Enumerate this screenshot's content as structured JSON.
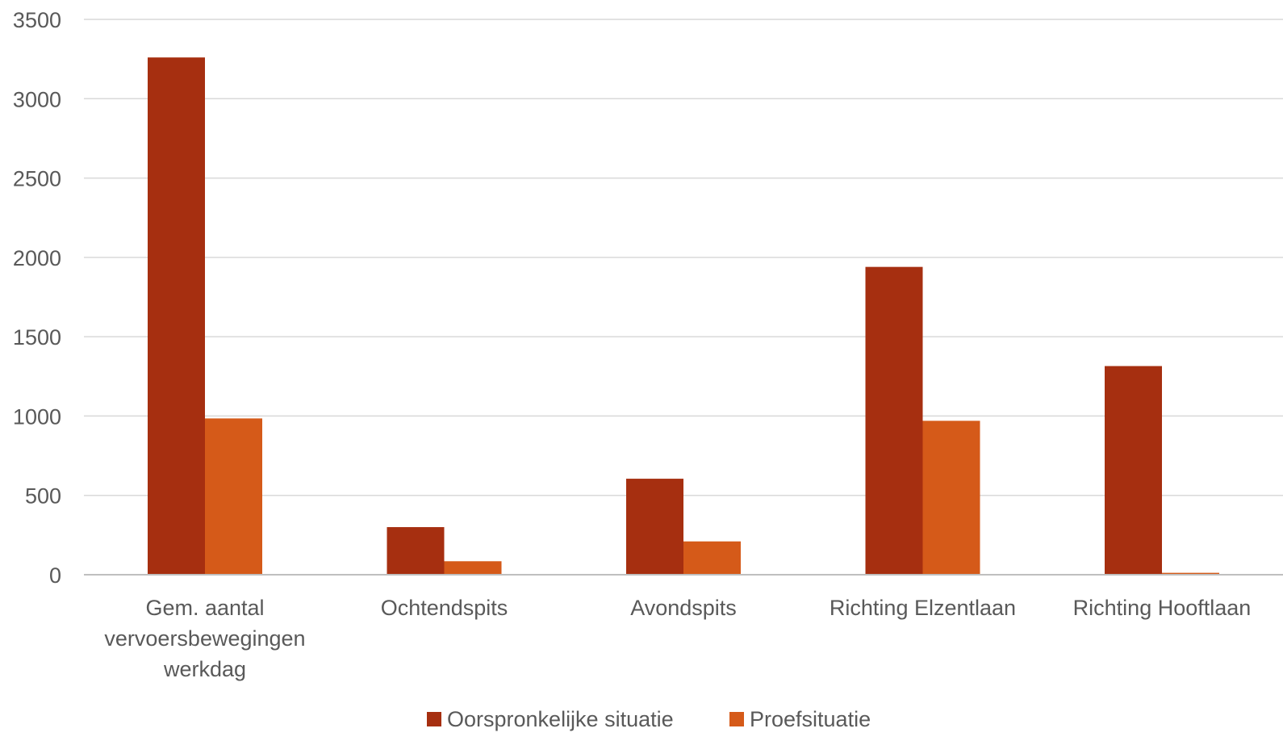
{
  "chart_data": {
    "type": "bar",
    "title": "",
    "xlabel": "",
    "ylabel": "",
    "ylim": [
      0,
      3500
    ],
    "yticks": [
      0,
      500,
      1000,
      1500,
      2000,
      2500,
      3000,
      3500
    ],
    "grid": true,
    "legend_position": "bottom",
    "categories": [
      [
        "Gem. aantal",
        "vervoersbewegingen",
        "werkdag"
      ],
      [
        "Ochtendspits"
      ],
      [
        "Avondspits"
      ],
      [
        "Richting Elzentlaan"
      ],
      [
        "Richting Hooftlaan"
      ]
    ],
    "series": [
      {
        "name": "Oorspronkelijke situatie",
        "color": "#A62F10",
        "values": [
          3260,
          300,
          605,
          1940,
          1315
        ]
      },
      {
        "name": "Proefsituatie",
        "color": "#D55A19",
        "values": [
          985,
          85,
          210,
          970,
          12
        ]
      }
    ],
    "colors": {
      "gridline": "#D9D9D9",
      "axis": "#BFBFBF",
      "text": "#595959"
    }
  }
}
